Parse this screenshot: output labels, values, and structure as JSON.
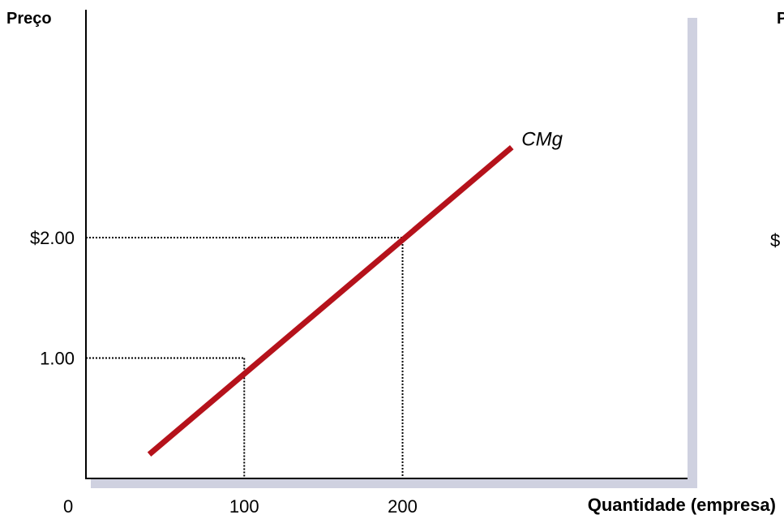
{
  "chart_data": {
    "type": "line",
    "ylabel": "Preço",
    "xlabel": "Quantidade (empresa)",
    "origin_label": "0",
    "xlim": [
      0,
      380
    ],
    "ylim": [
      0,
      3.5
    ],
    "x_ticks": [
      {
        "value": 100,
        "label": "100"
      },
      {
        "value": 200,
        "label": "200"
      }
    ],
    "y_ticks": [
      {
        "value": 1.0,
        "label": "1.00"
      },
      {
        "value": 2.0,
        "label": "$2.00"
      }
    ],
    "series": [
      {
        "name": "CMg",
        "color": "#b5121b",
        "points": [
          [
            40,
            0.2
          ],
          [
            269,
            2.75
          ]
        ]
      }
    ],
    "reference_points": [
      {
        "x": 100,
        "y": 1.0
      },
      {
        "x": 200,
        "y": 2.0
      }
    ],
    "cut_off_labels": [
      "P",
      "$"
    ],
    "grid": false,
    "legend": "none"
  }
}
